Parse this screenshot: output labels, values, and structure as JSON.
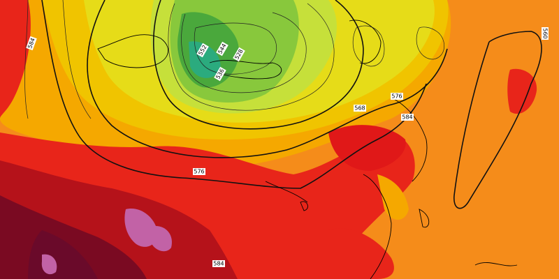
{
  "map": {
    "contour_labels": [
      {
        "label": "584"
      },
      {
        "label": "576"
      },
      {
        "label": "568"
      },
      {
        "label": "576"
      },
      {
        "label": "584"
      },
      {
        "label": "552"
      },
      {
        "label": "544"
      },
      {
        "label": "536"
      },
      {
        "label": "528"
      },
      {
        "label": "584"
      },
      {
        "label": "560"
      }
    ]
  }
}
